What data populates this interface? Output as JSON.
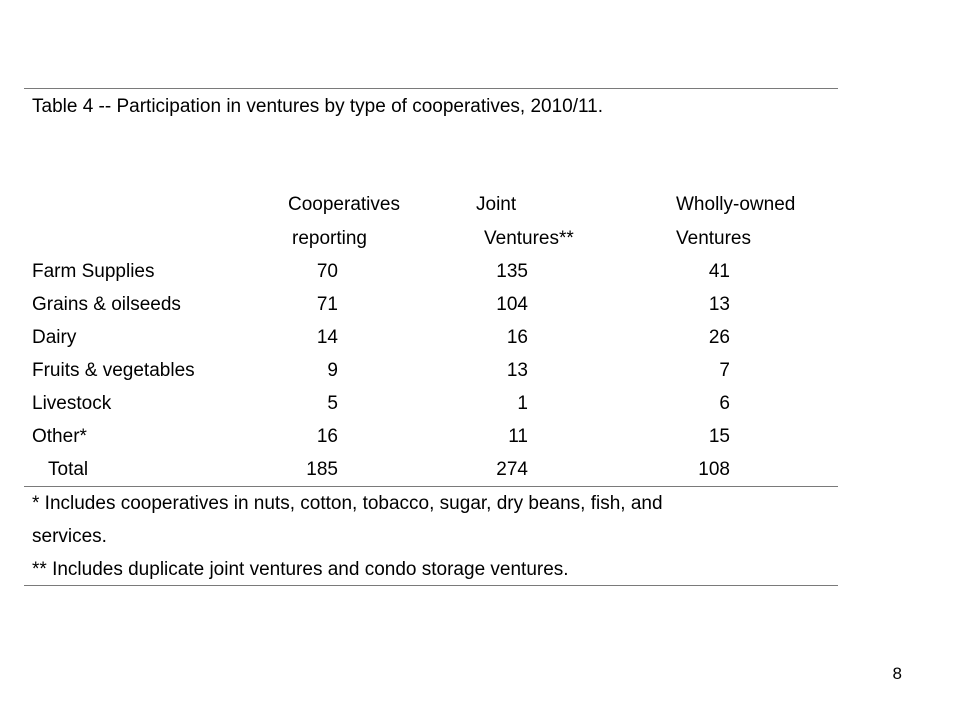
{
  "title": "Table 4 -- Participation in ventures by type of cooperatives, 2010/11.",
  "headers": {
    "col1": [
      "Cooperatives",
      "reporting"
    ],
    "col2": [
      "Joint",
      "Ventures**"
    ],
    "col3": [
      "Wholly-owned",
      "Ventures"
    ]
  },
  "rows": [
    {
      "label": "Farm Supplies",
      "values": [
        "70",
        "135",
        "41"
      ]
    },
    {
      "label": "Grains & oilseeds",
      "values": [
        "71",
        "104",
        "13"
      ]
    },
    {
      "label": "Dairy",
      "values": [
        "14",
        "16",
        "26"
      ]
    },
    {
      "label": "Fruits & vegetables",
      "values": [
        "9",
        "13",
        "7"
      ]
    },
    {
      "label": "Livestock",
      "values": [
        "5",
        "1",
        "6"
      ]
    },
    {
      "label": "Other*",
      "values": [
        "16",
        "11",
        "15"
      ]
    },
    {
      "label": "Total",
      "values": [
        "185",
        "274",
        "108"
      ]
    }
  ],
  "footnotes": [
    "* Includes cooperatives in nuts, cotton, tobacco, sugar, dry beans, fish, and",
    "services.",
    "** Includes duplicate joint ventures and condo storage ventures."
  ],
  "page_number": "8"
}
